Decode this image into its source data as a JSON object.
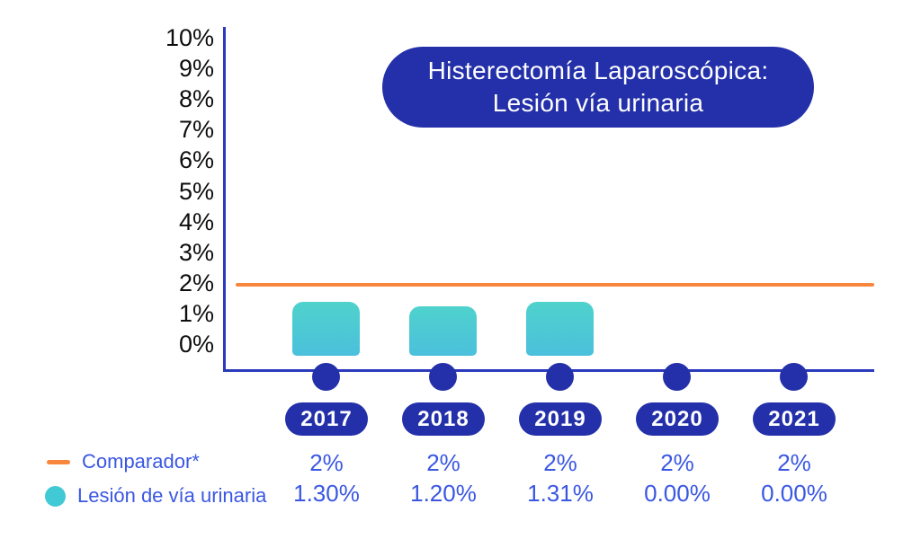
{
  "title": {
    "line1": "Histerectomía Laparoscópica:",
    "line2": "Lesión vía urinaria"
  },
  "legend": {
    "comparador_label": "Comparador*",
    "lesion_label": "Lesión de vía urinaria"
  },
  "colors": {
    "indigo": "#2430A9",
    "axis_blue": "#2B3ABB",
    "text_blue": "#3A57E2",
    "orange": "#F8863D",
    "teal": "#4CC9D6"
  },
  "chart_data": {
    "type": "bar",
    "title": "Histerectomía Laparoscópica: Lesión vía urinaria",
    "categories": [
      "2017",
      "2018",
      "2019",
      "2020",
      "2021"
    ],
    "series": [
      {
        "name": "Comparador*",
        "type": "line",
        "color": "#F8863D",
        "values": [
          2,
          2,
          2,
          2,
          2
        ],
        "labels": [
          "2%",
          "2%",
          "2%",
          "2%",
          "2%"
        ]
      },
      {
        "name": "Lesión de vía urinaria",
        "type": "bar",
        "color": "#4CC9D6",
        "values": [
          1.3,
          1.2,
          1.31,
          0.0,
          0.0
        ],
        "labels": [
          "1.30%",
          "1.20%",
          "1.31%",
          "0.00%",
          "0.00%"
        ]
      }
    ],
    "ylim": [
      0,
      10
    ],
    "ytick_labels": [
      "10%",
      "9%",
      "8%",
      "7%",
      "6%",
      "5%",
      "4%",
      "3%",
      "2%",
      "1%",
      "0%"
    ],
    "xlabel": "",
    "ylabel": "",
    "grid": false,
    "legend_position": "bottom-left"
  }
}
